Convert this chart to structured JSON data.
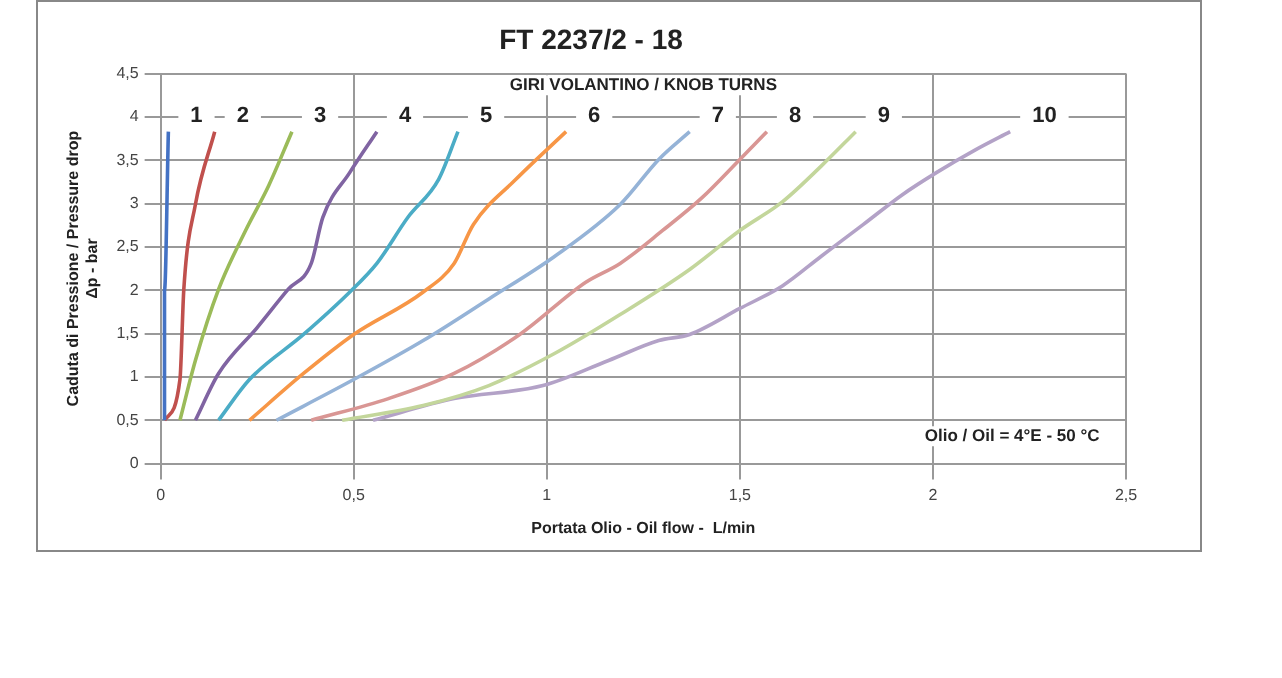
{
  "chart_data": {
    "type": "line",
    "title": "FT 2237/2 - 18",
    "xlabel": "Portata Olio - Oil flow -  L/min",
    "ylabel": "Caduta di Pressione / Pressure drop\nΔp - bar",
    "annotations": [
      "GIRI VOLANTINO / KNOB TURNS",
      "Olio / Oil = 4°E - 50 °C"
    ],
    "xlim": [
      0,
      2.5
    ],
    "ylim": [
      0,
      4.5
    ],
    "xticks": [
      0,
      {
        "value": 0.5,
        "label": "0,5"
      },
      1,
      {
        "value": 1.5,
        "label": "1,5"
      },
      2,
      {
        "value": 2.5,
        "label": "2,5"
      }
    ],
    "yticks": [
      0,
      {
        "value": 0.5,
        "label": "0,5"
      },
      1,
      {
        "value": 1.5,
        "label": "1,5"
      },
      2,
      {
        "value": 2.5,
        "label": "2,5"
      },
      3,
      {
        "value": 3.5,
        "label": "3,5"
      },
      4,
      {
        "value": 4.5,
        "label": "4,5"
      }
    ],
    "grid": true,
    "legend": false,
    "marker": "none",
    "line_style": "solid",
    "series": [
      {
        "name": "1",
        "color": "#4472c4",
        "x": [
          0.01,
          0.01,
          0.02
        ],
        "values": [
          0.5,
          2,
          3.83
        ]
      },
      {
        "name": "2",
        "color": "#c0504d",
        "x": [
          0.01,
          0.05,
          0.06,
          0.09,
          0.14
        ],
        "values": [
          0.5,
          0.97,
          2.01,
          2.99,
          3.83
        ]
      },
      {
        "name": "3",
        "color": "#9bbb59",
        "x": [
          0.05,
          0.09,
          0.15,
          0.22,
          0.28,
          0.34
        ],
        "values": [
          0.5,
          1.19,
          2.01,
          2.69,
          3.21,
          3.83
        ]
      },
      {
        "name": "4",
        "color": "#8064a2",
        "x": [
          0.09,
          0.15,
          0.25,
          0.33,
          0.39,
          0.42,
          0.49,
          0.56
        ],
        "values": [
          0.5,
          1.04,
          1.57,
          2.01,
          2.31,
          2.84,
          3.36,
          3.83
        ]
      },
      {
        "name": "5",
        "color": "#4bacc6",
        "x": [
          0.15,
          0.23,
          0.37,
          0.49,
          0.56,
          0.64,
          0.72,
          0.77
        ],
        "values": [
          0.5,
          0.97,
          1.49,
          1.98,
          2.31,
          2.84,
          3.28,
          3.83
        ]
      },
      {
        "name": "6",
        "color": "#f79646",
        "x": [
          0.23,
          0.37,
          0.5,
          0.68,
          0.76,
          0.81,
          0.92,
          1.05
        ],
        "values": [
          0.5,
          1.04,
          1.49,
          1.98,
          2.31,
          2.76,
          3.28,
          3.83
        ]
      },
      {
        "name": "7",
        "color": "#95b3d7",
        "x": [
          0.3,
          0.5,
          0.68,
          0.85,
          1.02,
          1.19,
          1.29,
          1.37
        ],
        "values": [
          0.5,
          0.97,
          1.42,
          1.9,
          2.39,
          2.99,
          3.51,
          3.83
        ]
      },
      {
        "name": "8",
        "color": "#d99694",
        "x": [
          0.39,
          0.59,
          0.76,
          0.93,
          1.1,
          1.19,
          1.3,
          1.4,
          1.5,
          1.57
        ],
        "values": [
          0.5,
          0.75,
          1.04,
          1.49,
          2.09,
          2.31,
          2.69,
          3.06,
          3.51,
          3.83
        ]
      },
      {
        "name": "9",
        "color": "#c3d69b",
        "x": [
          0.47,
          0.68,
          0.85,
          1.02,
          1.19,
          1.37,
          1.5,
          1.61,
          1.71,
          1.8
        ],
        "values": [
          0.5,
          0.67,
          0.9,
          1.27,
          1.72,
          2.24,
          2.69,
          3.02,
          3.43,
          3.83
        ]
      },
      {
        "name": "10",
        "color": "#b3a2c7",
        "x": [
          0.55,
          0.76,
          0.99,
          1.16,
          1.29,
          1.37,
          1.5,
          1.61,
          1.71,
          1.82,
          1.92,
          2.01,
          2.11,
          2.2
        ],
        "values": [
          0.5,
          0.75,
          0.9,
          1.19,
          1.42,
          1.49,
          1.79,
          2.05,
          2.39,
          2.76,
          3.1,
          3.36,
          3.62,
          3.83
        ]
      }
    ]
  }
}
